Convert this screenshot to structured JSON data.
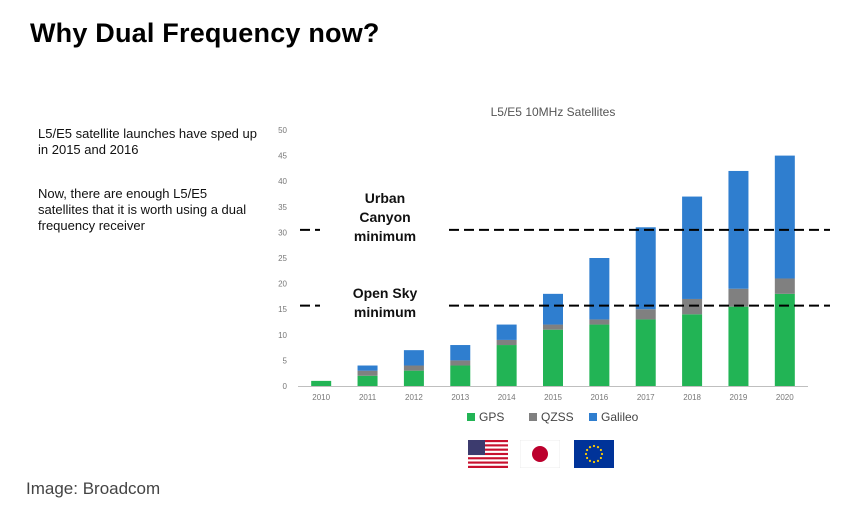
{
  "slide": {
    "title": "Why Dual Frequency now?",
    "bullet_1": "L5/E5 satellite launches have sped up in 2015 and 2016",
    "bullet_2": "Now, there are enough L5/E5 satellites that it is worth using a dual frequency receiver",
    "caption": "Image: Broadcom"
  },
  "chart_data": {
    "type": "bar",
    "stacked": true,
    "title": "L5/E5 10MHz Satellites",
    "categories": [
      "2010",
      "2011",
      "2012",
      "2013",
      "2014",
      "2015",
      "2016",
      "2017",
      "2018",
      "2019",
      "2020"
    ],
    "series": [
      {
        "name": "GPS",
        "color": "#22b455",
        "values": [
          1,
          2,
          3,
          4,
          8,
          11,
          12,
          13,
          14,
          15.5,
          18
        ]
      },
      {
        "name": "QZSS",
        "color": "#808080",
        "values": [
          0,
          1,
          1,
          1,
          1,
          1,
          1,
          2,
          3,
          3.5,
          3
        ]
      },
      {
        "name": "Galileo",
        "color": "#2f7ecf",
        "values": [
          0,
          1,
          3,
          3,
          3,
          6,
          12,
          16,
          20,
          23,
          24
        ]
      }
    ],
    "ylim": [
      0,
      50
    ],
    "yticks": [
      0,
      5,
      10,
      15,
      20,
      25,
      30,
      35,
      40,
      45,
      50
    ],
    "grid": false,
    "legend_position": "bottom",
    "annotations": [
      {
        "label_lines": [
          "Urban",
          "Canyon",
          "minimum"
        ],
        "y": 30.5
      },
      {
        "label_lines": [
          "Open Sky",
          "minimum"
        ],
        "y": 15.7
      }
    ],
    "flags": [
      "usa-flag-icon",
      "japan-flag-icon",
      "eu-flag-icon"
    ]
  }
}
